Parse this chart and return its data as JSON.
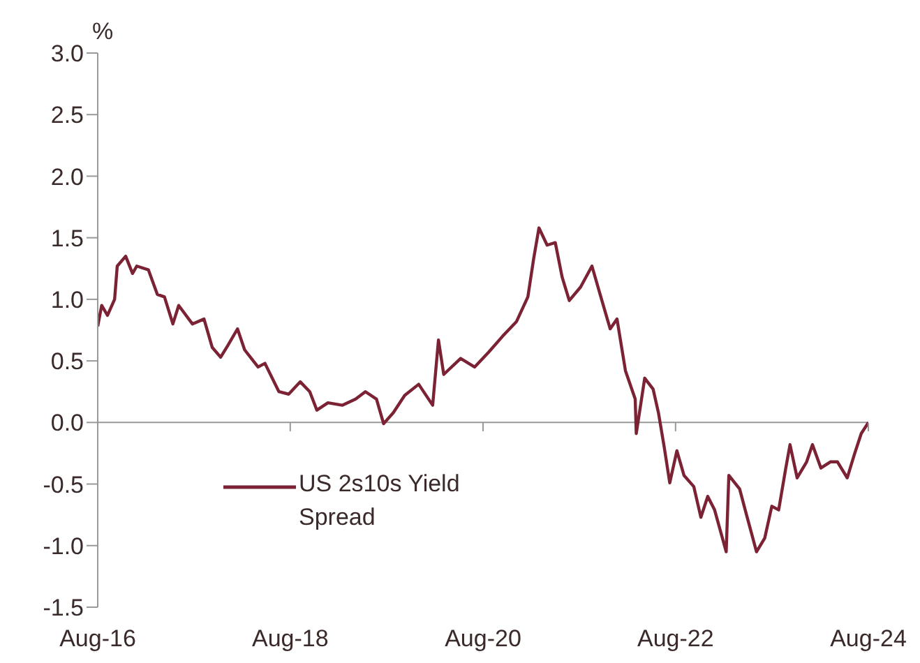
{
  "chart_data": {
    "type": "line",
    "ylabel": "%",
    "x": [
      "2016-08-01",
      "2016-08-16",
      "2016-09-07",
      "2016-10-04",
      "2016-10-14",
      "2016-11-15",
      "2016-12-11",
      "2016-12-27",
      "2017-02-09",
      "2017-03-15",
      "2017-04-11",
      "2017-05-13",
      "2017-06-04",
      "2017-07-26",
      "2017-09-08",
      "2017-10-09",
      "2017-11-10",
      "2017-12-06",
      "2018-01-13",
      "2018-02-09",
      "2018-04-01",
      "2018-04-27",
      "2018-06-19",
      "2018-07-26",
      "2018-09-08",
      "2018-10-14",
      "2018-11-10",
      "2018-12-22",
      "2019-02-14",
      "2019-04-06",
      "2019-05-13",
      "2019-06-24",
      "2019-07-21",
      "2019-08-27",
      "2019-10-09",
      "2019-12-01",
      "2020-01-23",
      "2020-02-14",
      "2020-03-05",
      "2020-05-08",
      "2020-06-30",
      "2020-08-22",
      "2020-10-14",
      "2020-12-06",
      "2021-01-18",
      "2021-02-09",
      "2021-03-01",
      "2021-04-01",
      "2021-05-02",
      "2021-05-28",
      "2021-06-24",
      "2021-08-06",
      "2021-09-18",
      "2021-10-19",
      "2021-11-26",
      "2021-12-22",
      "2022-01-23",
      "2022-03-01",
      "2022-03-05",
      "2022-04-06",
      "2022-05-08",
      "2022-05-28",
      "2022-06-19",
      "2022-07-10",
      "2022-08-06",
      "2022-09-02",
      "2022-10-09",
      "2022-11-05",
      "2022-12-01",
      "2022-12-27",
      "2023-02-09",
      "2023-02-19",
      "2023-04-01",
      "2023-04-27",
      "2023-06-04",
      "2023-07-05",
      "2023-08-01",
      "2023-08-27",
      "2023-09-23",
      "2023-10-09",
      "2023-11-05",
      "2023-12-11",
      "2024-01-02",
      "2024-02-03",
      "2024-03-10",
      "2024-04-06",
      "2024-05-13",
      "2024-06-09",
      "2024-07-05",
      "2024-08-01"
    ],
    "series": [
      {
        "name": "US 2s10s Yield Spread",
        "color": "#7b2335",
        "values": [
          0.78,
          0.95,
          0.87,
          1.0,
          1.27,
          1.35,
          1.21,
          1.27,
          1.24,
          1.04,
          1.02,
          0.8,
          0.95,
          0.8,
          0.84,
          0.61,
          0.53,
          0.62,
          0.76,
          0.59,
          0.45,
          0.48,
          0.25,
          0.23,
          0.33,
          0.25,
          0.1,
          0.16,
          0.14,
          0.19,
          0.25,
          0.19,
          -0.01,
          0.08,
          0.22,
          0.31,
          0.14,
          0.67,
          0.39,
          0.52,
          0.45,
          0.57,
          0.7,
          0.82,
          1.02,
          1.33,
          1.58,
          1.44,
          1.46,
          1.18,
          0.99,
          1.1,
          1.27,
          1.04,
          0.76,
          0.84,
          0.42,
          0.19,
          -0.09,
          0.36,
          0.27,
          0.08,
          -0.2,
          -0.49,
          -0.23,
          -0.43,
          -0.52,
          -0.77,
          -0.6,
          -0.71,
          -1.05,
          -0.43,
          -0.54,
          -0.75,
          -1.05,
          -0.94,
          -0.68,
          -0.71,
          -0.37,
          -0.18,
          -0.45,
          -0.32,
          -0.18,
          -0.37,
          -0.32,
          -0.32,
          -0.45,
          -0.26,
          -0.09,
          0.0
        ]
      }
    ],
    "xlim": [
      "2016-08-01",
      "2024-08-01"
    ],
    "xticks": [
      {
        "value": "2016-08-01",
        "label": "Aug-16"
      },
      {
        "value": "2018-08-01",
        "label": "Aug-18"
      },
      {
        "value": "2020-08-01",
        "label": "Aug-20"
      },
      {
        "value": "2022-08-01",
        "label": "Aug-22"
      },
      {
        "value": "2024-08-01",
        "label": "Aug-24"
      }
    ],
    "ylim": [
      -1.5,
      3.0
    ],
    "yticks": [
      {
        "value": -1.5,
        "label": "-1.5"
      },
      {
        "value": -1.0,
        "label": "-1.0"
      },
      {
        "value": -0.5,
        "label": "-0.5"
      },
      {
        "value": 0,
        "label": "0.0"
      },
      {
        "value": 0.5,
        "label": "0.5"
      },
      {
        "value": 1.0,
        "label": "1.0"
      },
      {
        "value": 1.5,
        "label": "1.5"
      },
      {
        "value": 2.0,
        "label": "2.0"
      },
      {
        "value": 2.5,
        "label": "2.5"
      },
      {
        "value": 3.0,
        "label": "3.0"
      }
    ],
    "ref_lines": [
      {
        "axis": "y",
        "value": 0,
        "color": "#999999"
      }
    ],
    "grid": false,
    "legend": "bottom left",
    "marker": "none",
    "line_style": "solid"
  }
}
